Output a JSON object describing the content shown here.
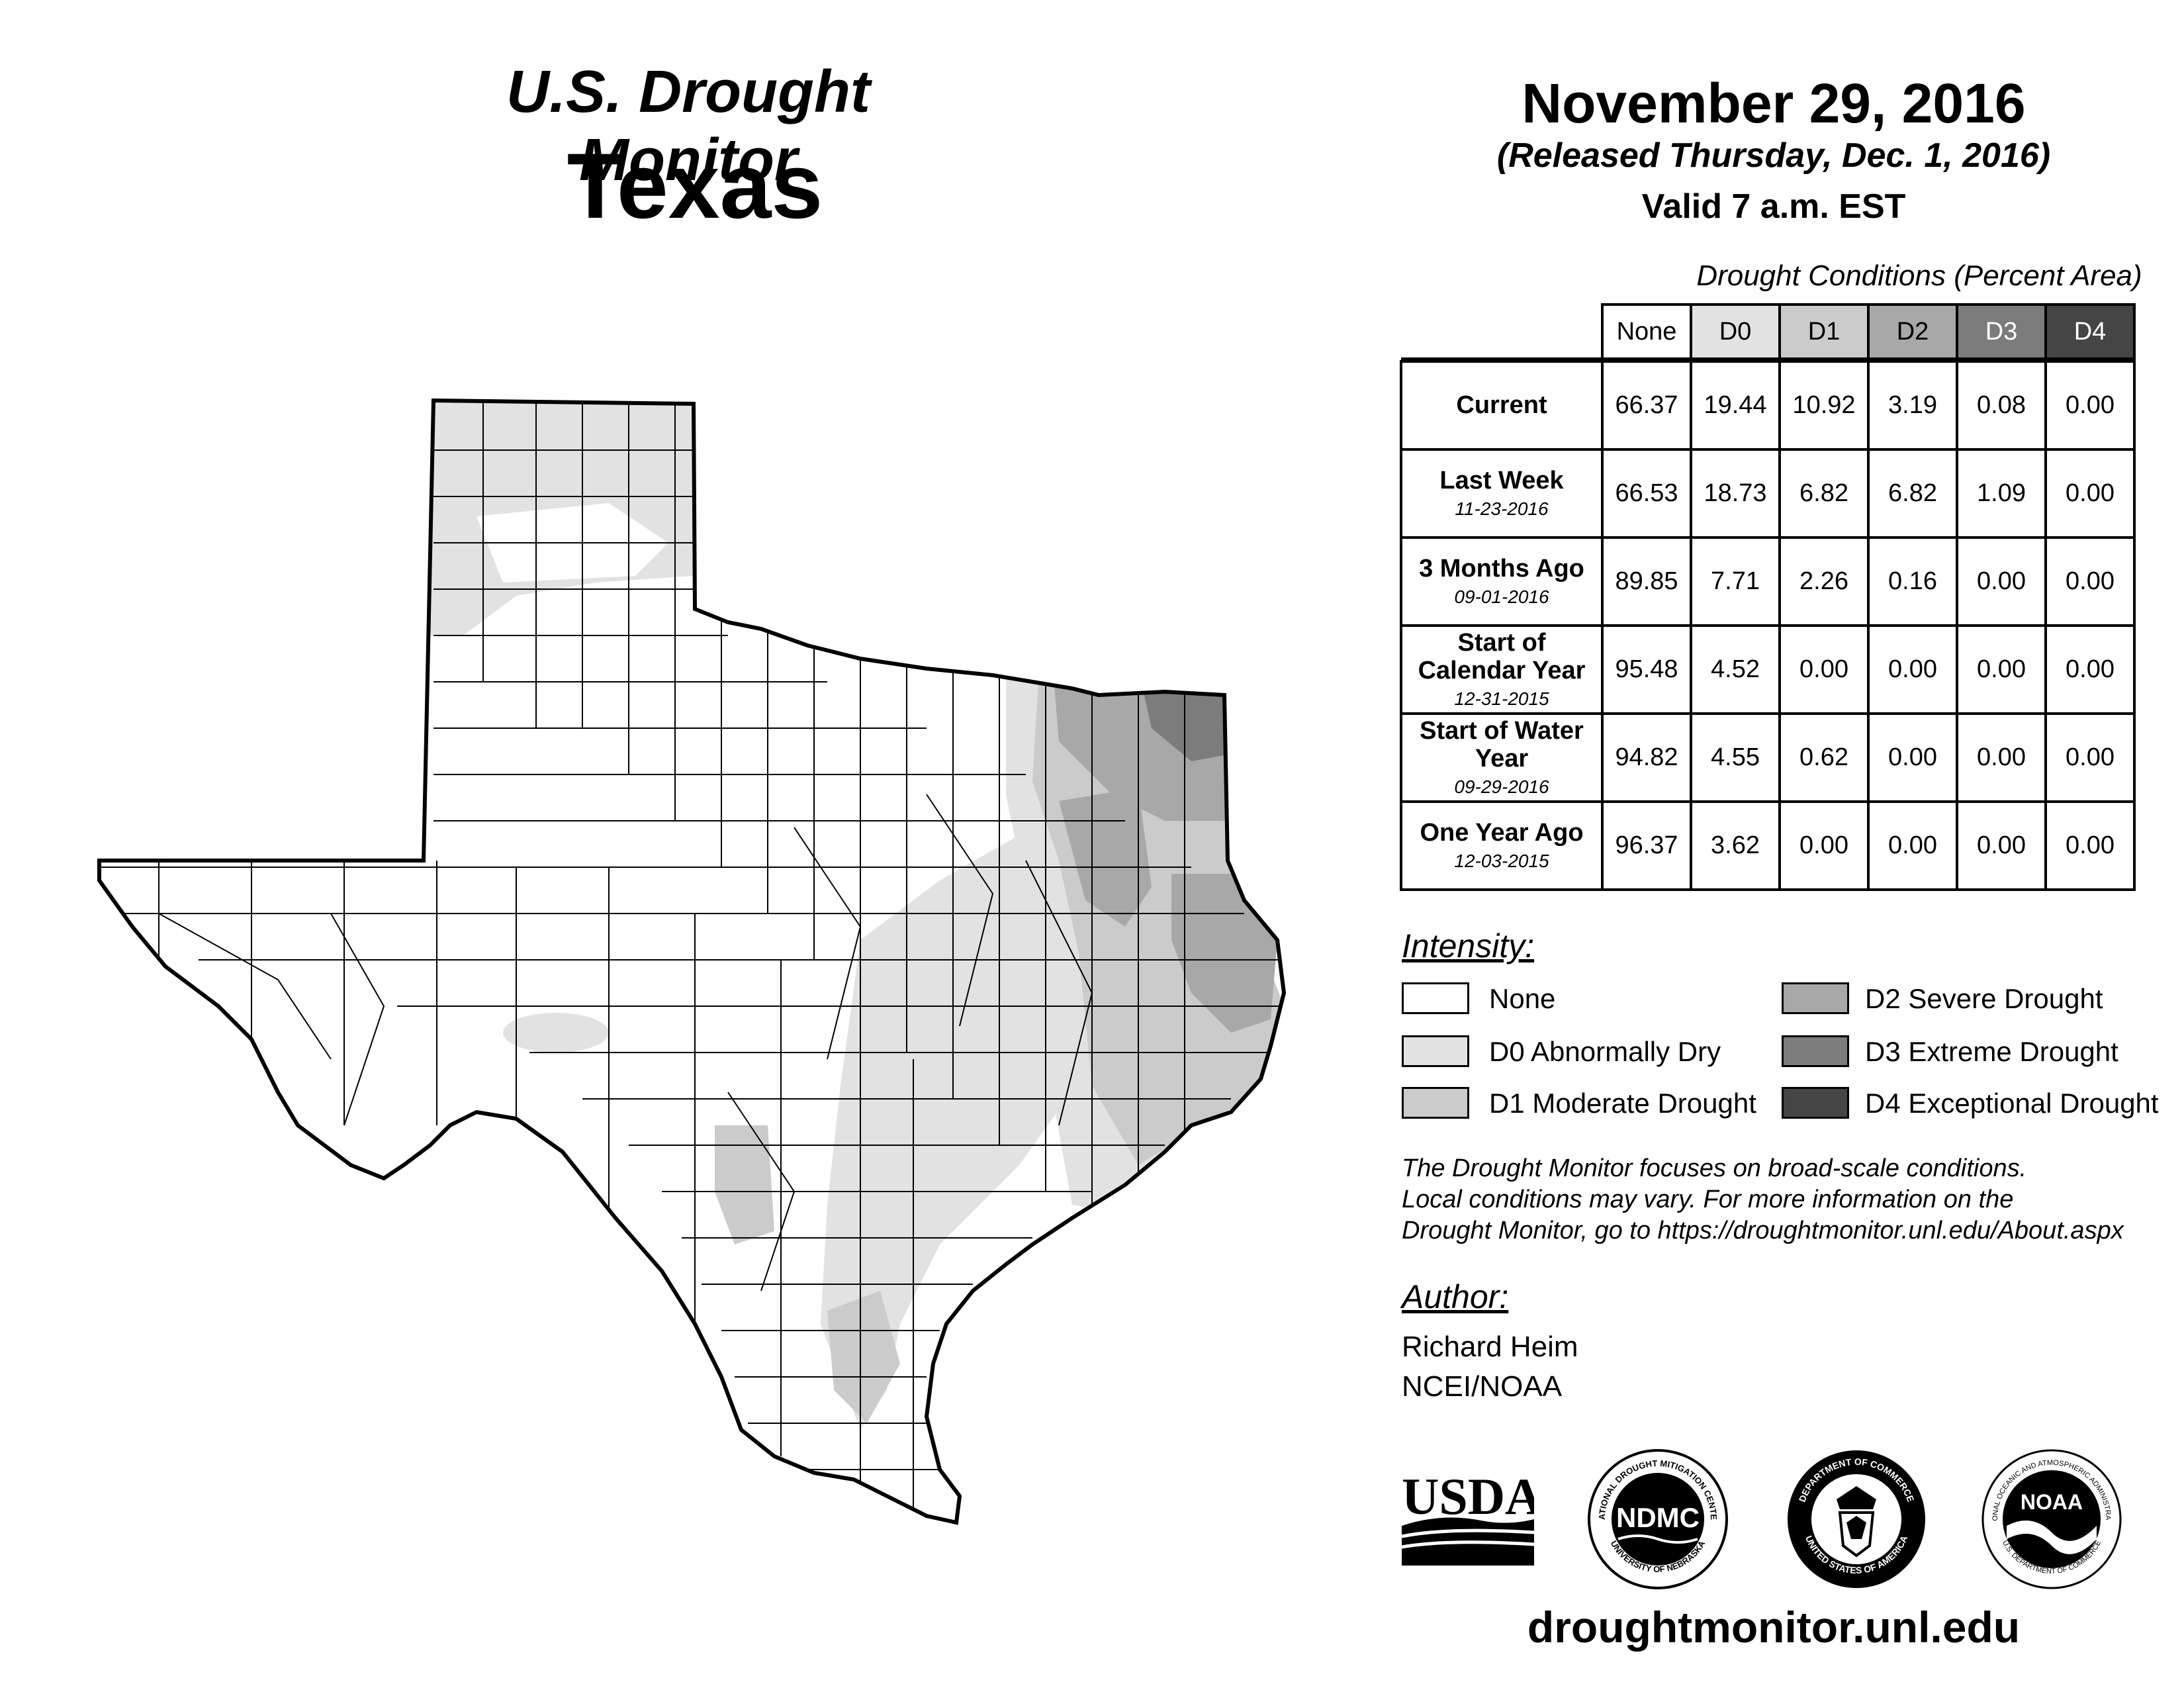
{
  "header": {
    "title": "U.S. Drought Monitor",
    "state": "Texas",
    "date": "November 29, 2016",
    "released": "(Released Thursday, Dec. 1, 2016)",
    "valid": "Valid 7 a.m. EST"
  },
  "table": {
    "caption": "Drought Conditions (Percent Area)",
    "columns": [
      "None",
      "D0",
      "D1",
      "D2",
      "D3",
      "D4"
    ],
    "rows": [
      {
        "label": "Current",
        "date": "",
        "values": [
          "66.37",
          "19.44",
          "10.92",
          "3.19",
          "0.08",
          "0.00"
        ]
      },
      {
        "label": "Last Week",
        "date": "11-23-2016",
        "values": [
          "66.53",
          "18.73",
          "6.82",
          "6.82",
          "1.09",
          "0.00"
        ]
      },
      {
        "label": "3 Months Ago",
        "date": "09-01-2016",
        "values": [
          "89.85",
          "7.71",
          "2.26",
          "0.16",
          "0.00",
          "0.00"
        ]
      },
      {
        "label": "Start of Calendar Year",
        "date": "12-31-2015",
        "values": [
          "95.48",
          "4.52",
          "0.00",
          "0.00",
          "0.00",
          "0.00"
        ]
      },
      {
        "label": "Start of Water Year",
        "date": "09-29-2016",
        "values": [
          "94.82",
          "4.55",
          "0.62",
          "0.00",
          "0.00",
          "0.00"
        ]
      },
      {
        "label": "One Year Ago",
        "date": "12-03-2015",
        "values": [
          "96.37",
          "3.62",
          "0.00",
          "0.00",
          "0.00",
          "0.00"
        ]
      }
    ]
  },
  "legend": {
    "title": "Intensity:",
    "items": [
      {
        "label": "None",
        "color": "#ffffff"
      },
      {
        "label": "D0 Abnormally Dry",
        "color": "#e2e2e2"
      },
      {
        "label": "D1 Moderate Drought",
        "color": "#cbcbcb"
      },
      {
        "label": "D2 Severe Drought",
        "color": "#a8a8a8"
      },
      {
        "label": "D3 Extreme Drought",
        "color": "#7c7c7c"
      },
      {
        "label": "D4 Exceptional Drought",
        "color": "#454545"
      }
    ]
  },
  "note": {
    "line1": "The Drought Monitor focuses on broad-scale conditions.",
    "line2": "Local conditions may vary. For more information on the",
    "line3": "Drought Monitor, go to https://droughtmonitor.unl.edu/About.aspx"
  },
  "author": {
    "title": "Author:",
    "name": "Richard Heim",
    "org": "NCEI/NOAA"
  },
  "logos": {
    "usda": "USDA",
    "ndmc": "NDMC",
    "ndmc_ring_top": "NATIONAL DROUGHT MITIGATION CENTER",
    "ndmc_ring_bottom": "UNIVERSITY OF NEBRASKA",
    "doc_ring_top": "DEPARTMENT OF COMMERCE",
    "doc_ring_bottom": "UNITED STATES OF AMERICA",
    "noaa": "NOAA",
    "noaa_ring_top": "NATIONAL OCEANIC AND ATMOSPHERIC ADMINISTRATION",
    "noaa_ring_bottom": "U.S. DEPARTMENT OF COMMERCE"
  },
  "footer": {
    "url": "droughtmonitor.unl.edu"
  },
  "map": {
    "region": "Texas",
    "drought_areas": [
      {
        "category": "D0",
        "location": "Panhandle"
      },
      {
        "category": "D0",
        "location": "Big Bend / Davis Mountains"
      },
      {
        "category": "D0",
        "location": "Central Texas to Coastal Bend"
      },
      {
        "category": "D1",
        "location": "South Texas / Rio Grande Plains"
      },
      {
        "category": "D1",
        "location": "Northeast and East Texas"
      },
      {
        "category": "D2",
        "location": "East Texas"
      },
      {
        "category": "D2",
        "location": "Northeast Texas (Red River)"
      },
      {
        "category": "D3",
        "location": "Northeast Texas"
      }
    ]
  }
}
